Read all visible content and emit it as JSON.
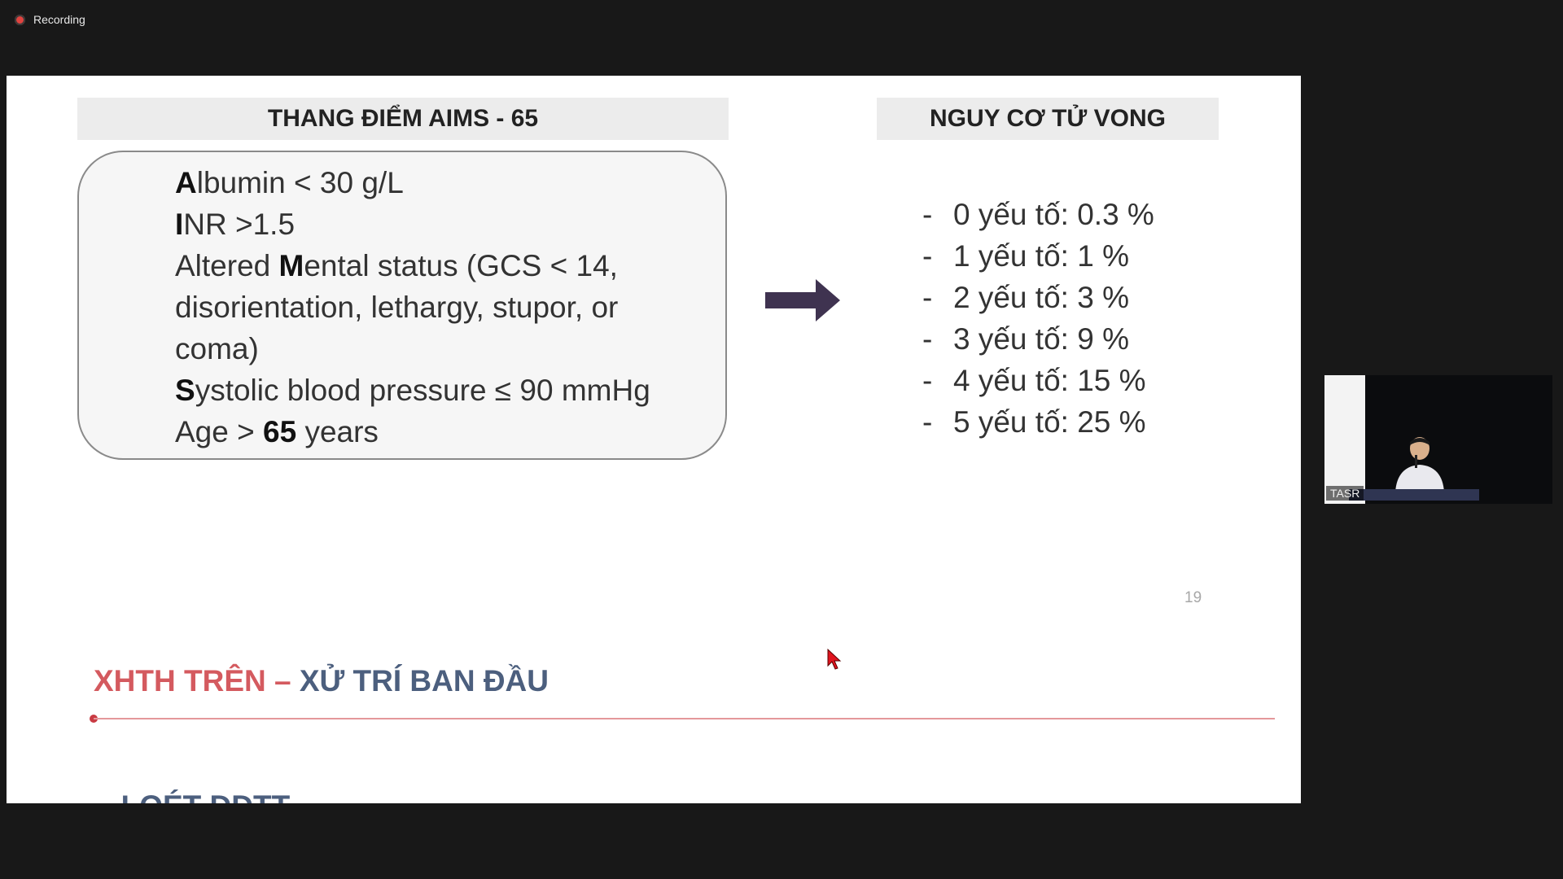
{
  "top_bar": {
    "recording_label": "Recording"
  },
  "slide": {
    "left_header": "THANG ĐIỂM AIMS - 65",
    "right_header": "NGUY CƠ TỬ VONG",
    "criteria": [
      {
        "bold": "A",
        "rest": "lbumin < 30 g/L"
      },
      {
        "bold": "I",
        "rest": "NR >1.5"
      },
      {
        "before": "Altered ",
        "bold": "M",
        "rest": "ental status (GCS < 14,"
      },
      {
        "before": "disorientation, lethargy, stupor, or"
      },
      {
        "before": "coma)"
      },
      {
        "bold": "S",
        "rest": "ystolic blood pressure ≤ 90 mmHg"
      },
      {
        "before": "Age > ",
        "bold": "65",
        "rest": " years"
      }
    ],
    "risk_items": [
      {
        "dash": "-",
        "text": "0 yếu tố: 0.3 %"
      },
      {
        "dash": "-",
        "text": "1 yếu tố: 1 %"
      },
      {
        "dash": "-",
        "text": "2 yếu tố: 3 %"
      },
      {
        "dash": "-",
        "text": "3 yếu tố: 9 %"
      },
      {
        "dash": "-",
        "text": "4 yếu tố: 15 %"
      },
      {
        "dash": "-",
        "text": "5 yếu tố: 25 %"
      }
    ],
    "page_number": "19"
  },
  "next_slide": {
    "title_red": "XHTH TRÊN – ",
    "title_blue": "XỬ TRÍ BAN ĐẦU",
    "cut_text": "- LOÉT DDTT"
  },
  "video": {
    "participant_label": "TASR"
  },
  "colors": {
    "arrow": "#3f3350",
    "title_red": "#d45a5f",
    "title_blue": "#4c5f7e",
    "cursor": "#e0141e"
  }
}
